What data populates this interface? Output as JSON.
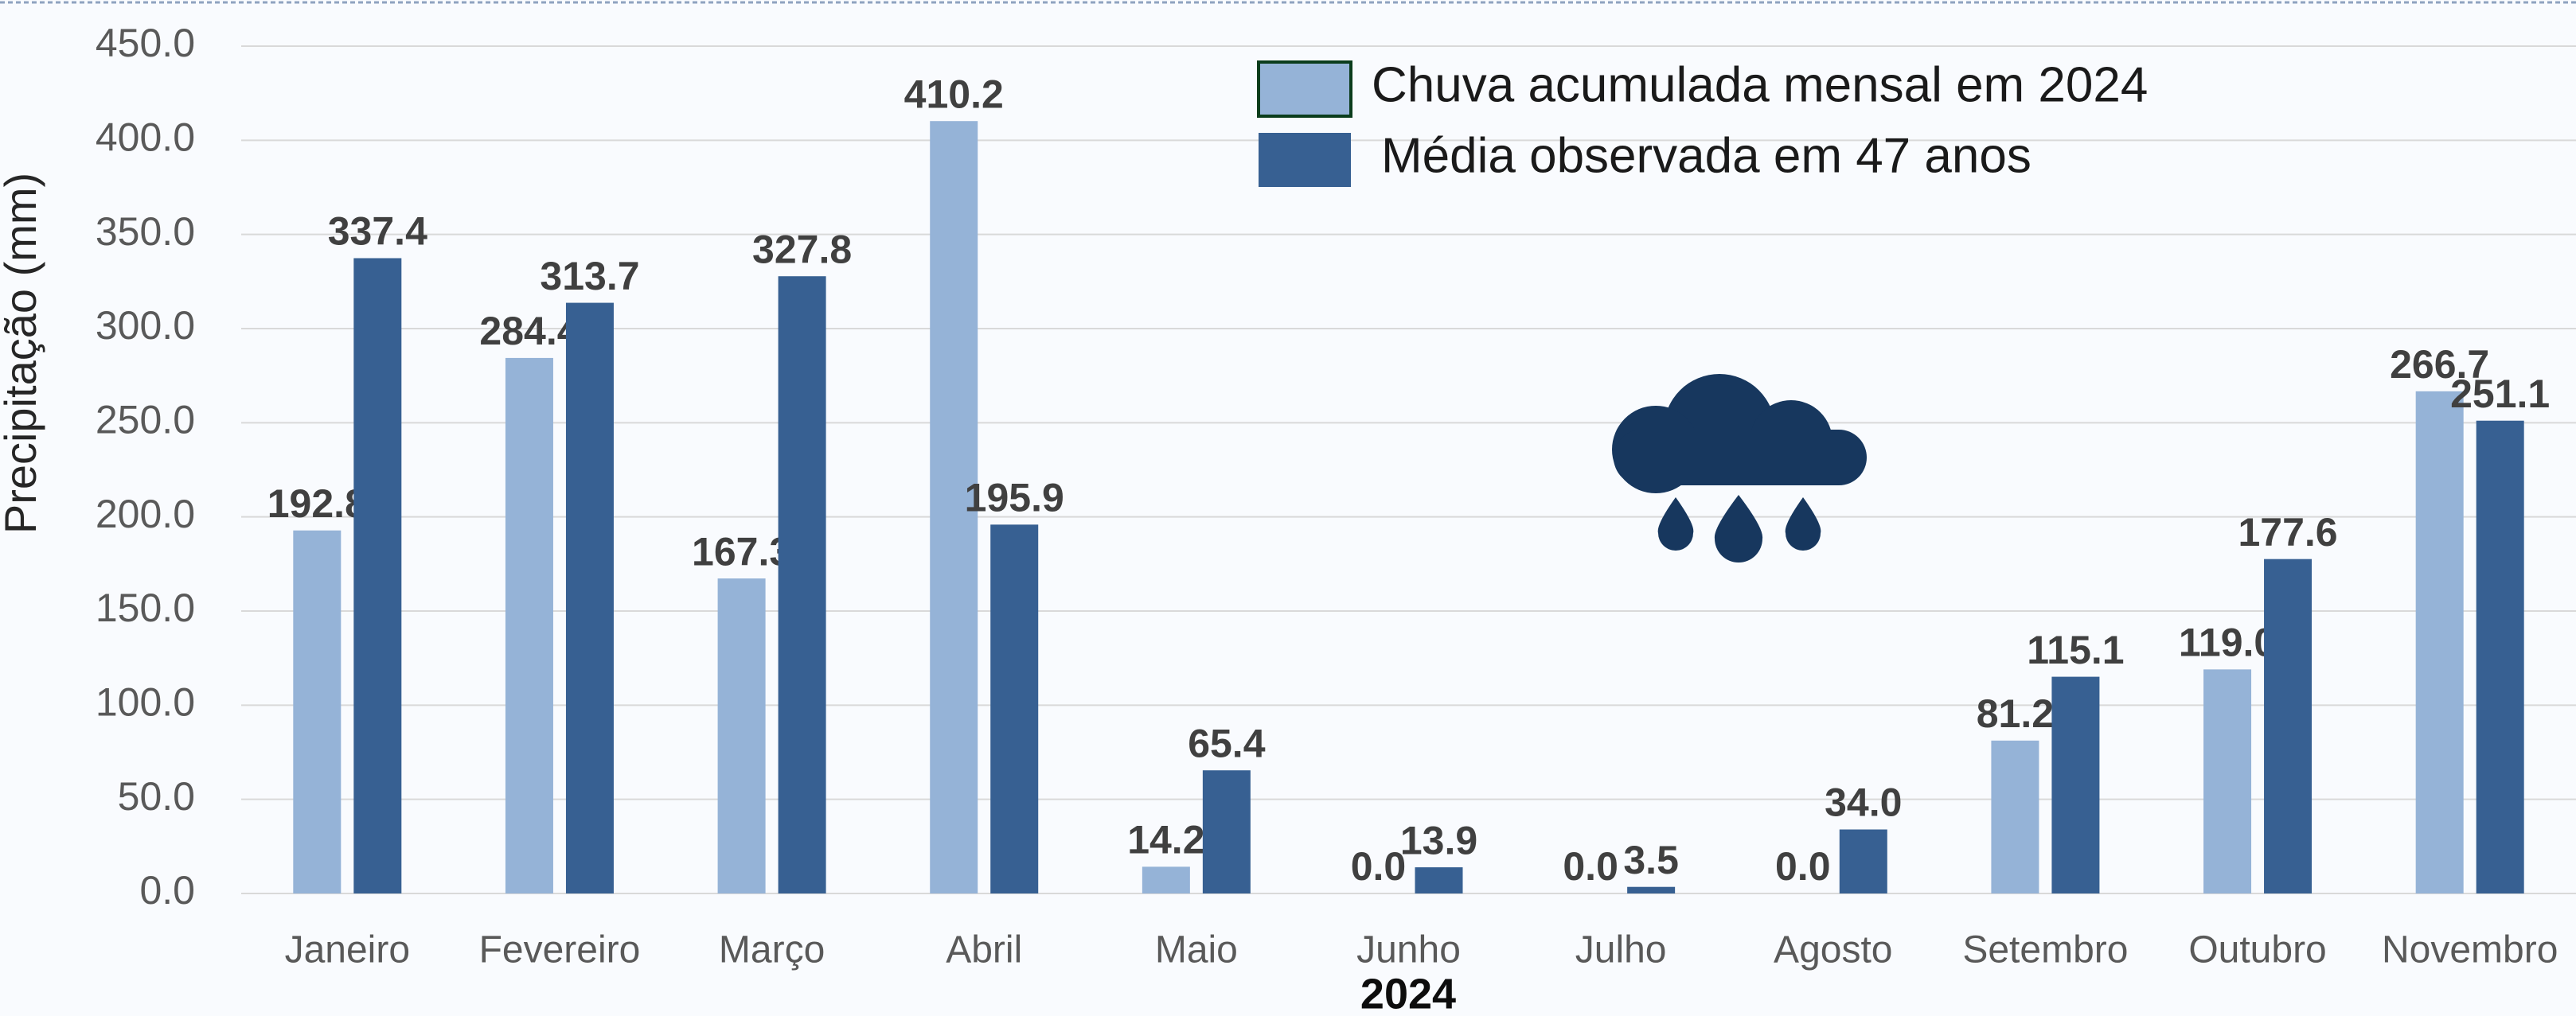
{
  "chart_data": {
    "type": "bar",
    "y_label": "Precipitação (mm)",
    "x_label": "2024",
    "categories": [
      "Janeiro",
      "Fevereiro",
      "Março",
      "Abril",
      "Maio",
      "Junho",
      "Julho",
      "Agosto",
      "Setembro",
      "Outubro",
      "Novembro"
    ],
    "series": [
      {
        "name": "Chuva acumulada mensal em 2024",
        "color": "#95b3d7",
        "values": [
          192.8,
          284.4,
          167.3,
          410.2,
          14.2,
          0,
          0,
          0,
          81.2,
          119.0,
          266.7
        ],
        "value_labels": [
          "192.8",
          "284.4",
          "167.3",
          "410.2",
          "14.2",
          "0.0",
          "0.0",
          "0.0",
          "81.2",
          "119.0",
          "266.7"
        ]
      },
      {
        "name": "Média observada em 47 anos",
        "color": "#376092",
        "values": [
          337.4,
          313.7,
          327.8,
          195.9,
          65.4,
          13.9,
          3.5,
          34.0,
          115.1,
          177.6,
          251.1
        ],
        "value_labels": [
          "337.4",
          "313.7",
          "327.8",
          "195.9",
          "65.4",
          "13.9",
          "3.5",
          "34.0",
          "115.1",
          "177.6",
          "251.1"
        ]
      }
    ],
    "ylim": [
      0,
      450
    ],
    "yticks": [
      {
        "value": 0,
        "label": "0.0"
      },
      {
        "value": 50,
        "label": "50.0"
      },
      {
        "value": 100,
        "label": "100.0"
      },
      {
        "value": 150,
        "label": "150.0"
      },
      {
        "value": 200,
        "label": "200.0"
      },
      {
        "value": 250,
        "label": "250.0"
      },
      {
        "value": 300,
        "label": "300.0"
      },
      {
        "value": 350,
        "label": "350.0"
      },
      {
        "value": 400,
        "label": "400.0"
      },
      {
        "value": 450,
        "label": "450.0"
      }
    ],
    "grid": true
  }
}
